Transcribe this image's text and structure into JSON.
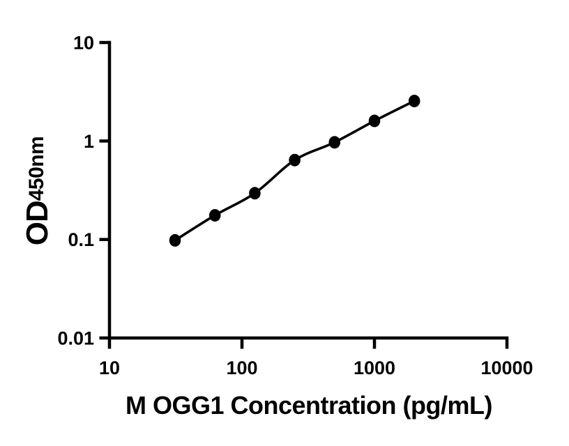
{
  "figure": {
    "background_color": "#ffffff",
    "ink_color": "#000000"
  },
  "chart_data": {
    "type": "scatter",
    "subtype": "line+markers",
    "title": "",
    "xlabel": "M OGG1 Concentration (pg/mL)",
    "ylabel_main": "OD",
    "ylabel_sub": "450nm",
    "x_scale": "log",
    "y_scale": "log",
    "xlim": [
      10,
      10000
    ],
    "ylim": [
      0.01,
      10
    ],
    "grid": false,
    "legend": false,
    "x_ticks": [
      {
        "value": 10,
        "label": "10"
      },
      {
        "value": 100,
        "label": "100"
      },
      {
        "value": 1000,
        "label": "1000"
      },
      {
        "value": 10000,
        "label": "10000"
      }
    ],
    "y_ticks": [
      {
        "value": 10,
        "label": "10"
      },
      {
        "value": 1,
        "label": "1"
      },
      {
        "value": 0.1,
        "label": "0.1"
      },
      {
        "value": 0.01,
        "label": "0.01"
      }
    ],
    "series": [
      {
        "name": "standard-curve",
        "marker": "filled-circle",
        "marker_color": "#000000",
        "line_style": "smooth",
        "line_color": "#000000",
        "points": [
          {
            "x": 31.25,
            "y": 0.098
          },
          {
            "x": 62.5,
            "y": 0.176
          },
          {
            "x": 125,
            "y": 0.295
          },
          {
            "x": 250,
            "y": 0.64
          },
          {
            "x": 500,
            "y": 0.97
          },
          {
            "x": 1000,
            "y": 1.6
          },
          {
            "x": 2000,
            "y": 2.55
          }
        ]
      }
    ]
  }
}
